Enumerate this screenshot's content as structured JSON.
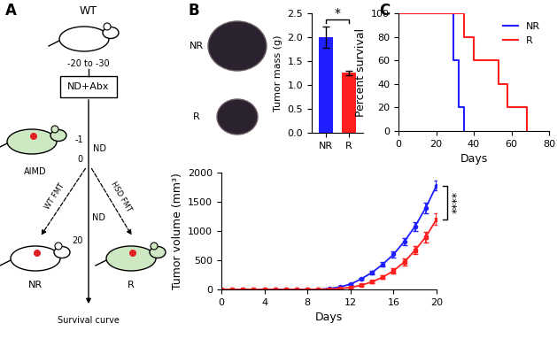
{
  "panel_labels": [
    "A",
    "B",
    "C"
  ],
  "diagram": {
    "strain": "WT",
    "time_start": "-20 to -30",
    "treatment_box": "ND+Abx",
    "day_minus1": "-1",
    "day0": "0",
    "diet_1": "ND",
    "donor": "AIMD",
    "fmt_left": "WT FMT",
    "fmt_right": "HSD FMT",
    "diet_2": "ND",
    "day_end": "20",
    "recipient_left": "NR",
    "recipient_right": "R",
    "endpoint": "Survival curve"
  },
  "photos": {
    "labels": [
      "NR",
      "R"
    ]
  },
  "chart_data": [
    {
      "type": "bar",
      "y_label": "Tumor mass (g)",
      "categories": [
        "NR",
        "R"
      ],
      "values": [
        2.0,
        1.25
      ],
      "errors": [
        0.22,
        0.05
      ],
      "colors": [
        "#1f1fff",
        "#ff1f1f"
      ],
      "ylim": [
        0,
        2.5
      ],
      "yticks": [
        {
          "value": 0,
          "label": "0.0"
        },
        {
          "value": 0.5,
          "label": "0.5"
        },
        {
          "value": 1,
          "label": "1.0"
        },
        {
          "value": 1.5,
          "label": "1.5"
        },
        {
          "value": 2,
          "label": "2.0"
        },
        {
          "value": 2.5,
          "label": "2.5"
        }
      ],
      "significance": "*"
    },
    {
      "type": "line",
      "x_label": "Days",
      "y_label": "Tumor volume (mm³)",
      "x": [
        0,
        1,
        2,
        3,
        4,
        5,
        6,
        7,
        8,
        9,
        10,
        11,
        12,
        13,
        14,
        15,
        16,
        17,
        18,
        19,
        20
      ],
      "xlim": [
        0,
        20
      ],
      "xticks": [
        0,
        4,
        8,
        12,
        16,
        20
      ],
      "ylim": [
        0,
        2000
      ],
      "yticks": [
        0,
        500,
        1000,
        1500,
        2000
      ],
      "series": [
        {
          "color": "#1f1fff",
          "marker": "o",
          "line_style": "solid",
          "values": [
            0,
            0,
            0,
            0,
            0,
            0,
            0,
            0,
            0,
            0,
            15,
            40,
            90,
            180,
            290,
            430,
            600,
            820,
            1080,
            1400,
            1780
          ],
          "errors": [
            0,
            0,
            0,
            0,
            0,
            0,
            0,
            0,
            0,
            0,
            3,
            8,
            15,
            20,
            30,
            40,
            50,
            60,
            75,
            90,
            80
          ]
        },
        {
          "color": "#ff1f1f",
          "marker": "s",
          "line_style": "solid",
          "values": [
            0,
            0,
            0,
            0,
            0,
            0,
            0,
            0,
            0,
            0,
            5,
            15,
            35,
            70,
            130,
            210,
            320,
            470,
            670,
            900,
            1200
          ],
          "errors": [
            0,
            0,
            0,
            0,
            0,
            0,
            0,
            0,
            0,
            0,
            2,
            5,
            10,
            15,
            20,
            30,
            40,
            55,
            70,
            90,
            100
          ]
        }
      ],
      "significance": "****"
    },
    {
      "type": "step",
      "x_label": "Days",
      "y_label": "Percent survival",
      "xlim": [
        0,
        80
      ],
      "xticks": [
        0,
        20,
        40,
        60,
        80
      ],
      "ylim": [
        0,
        100
      ],
      "yticks": [
        0,
        20,
        40,
        60,
        80,
        100
      ],
      "legend": "upper right",
      "series": [
        {
          "name": "NR",
          "color": "#1f1fff",
          "x": [
            0,
            29,
            32,
            35
          ],
          "values": [
            100,
            60,
            20,
            0
          ]
        },
        {
          "name": "R",
          "color": "#ff1f1f",
          "x": [
            0,
            35,
            40,
            53,
            58,
            68
          ],
          "values": [
            100,
            80,
            60,
            40,
            20,
            0
          ]
        }
      ]
    }
  ]
}
